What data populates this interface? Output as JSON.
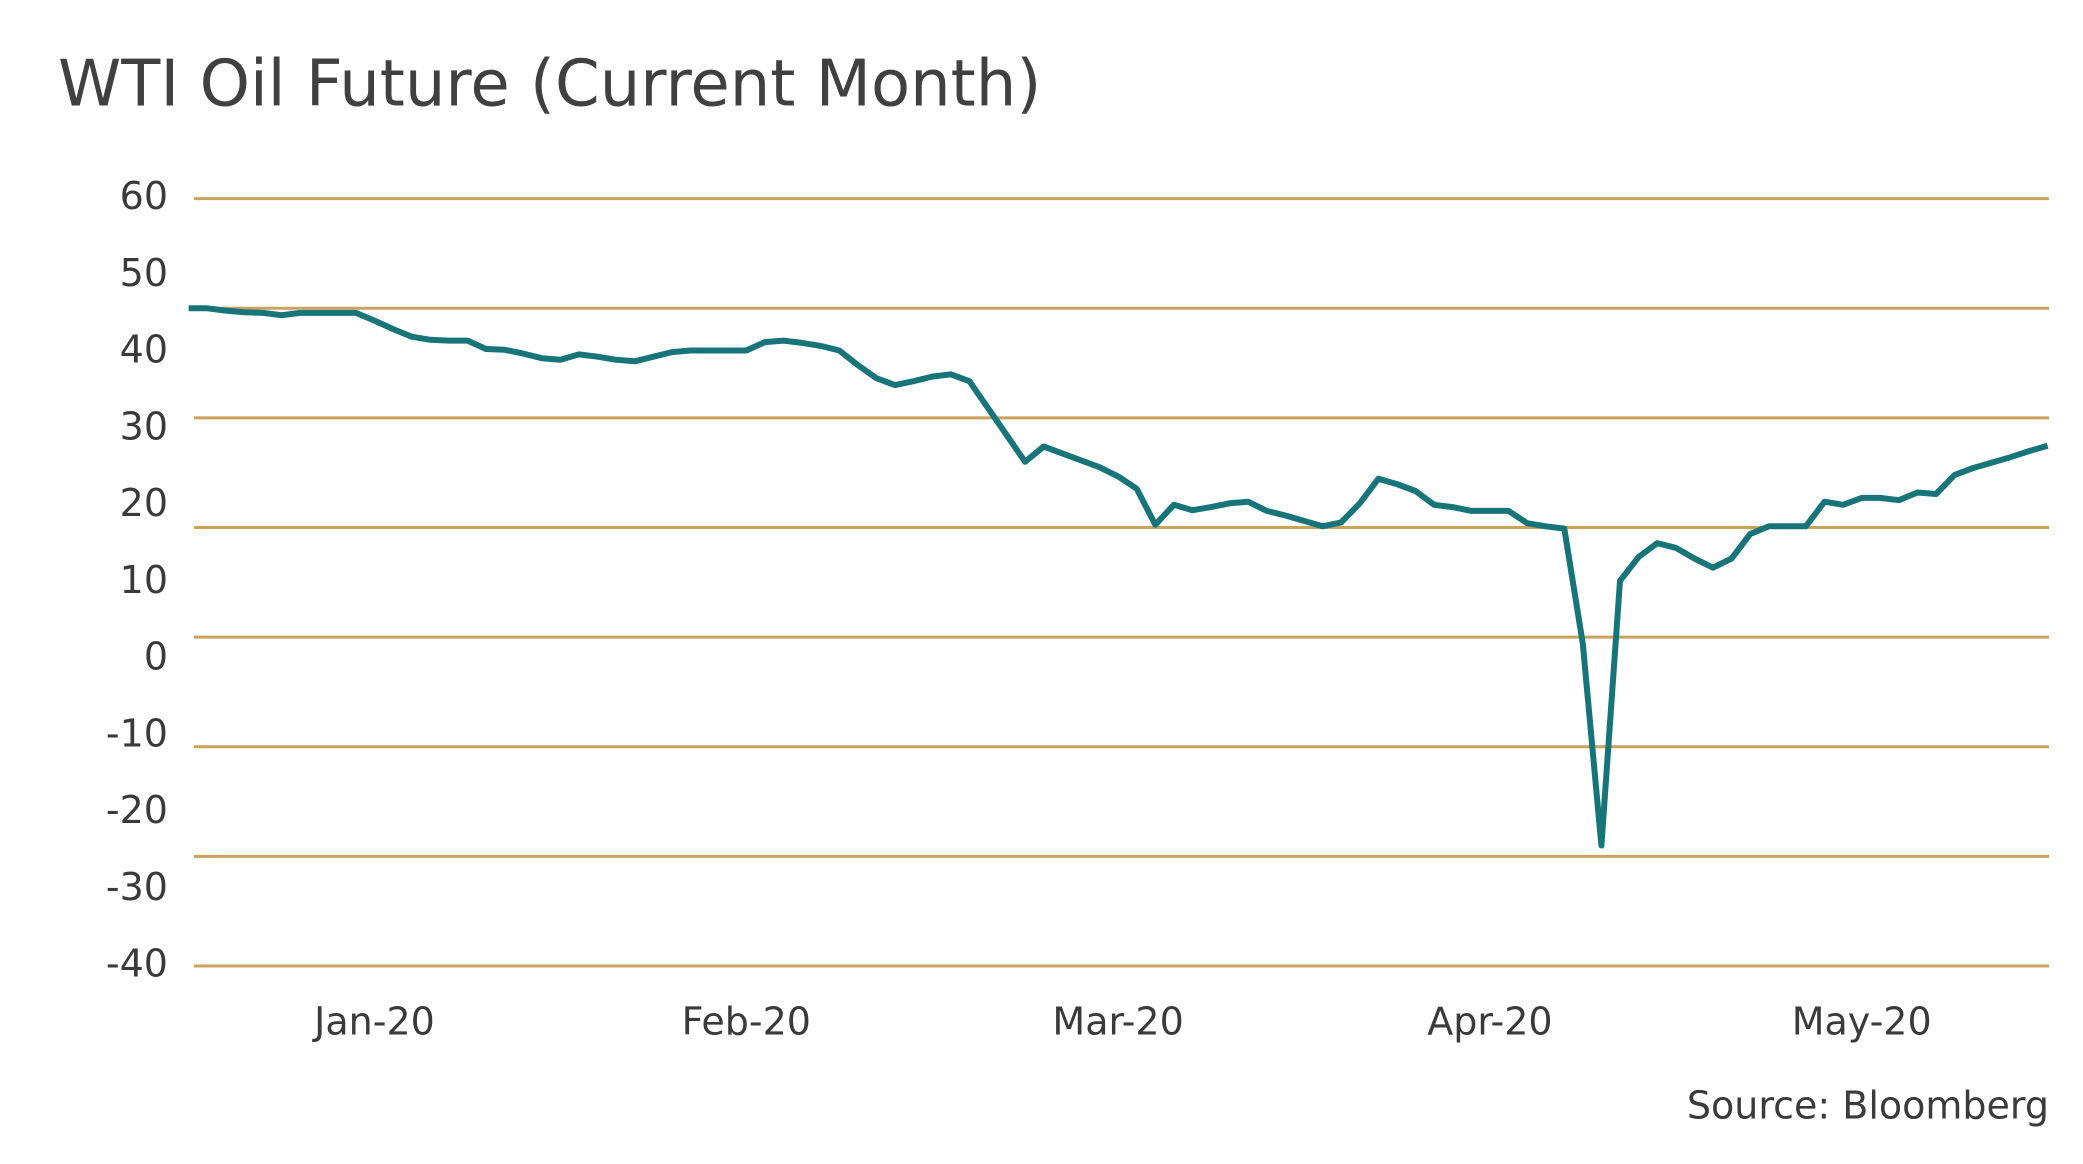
{
  "chart_data": {
    "type": "line",
    "title": "WTI Oil Future (Current Month)",
    "source": "Source: Bloomberg",
    "categories": [
      null,
      null,
      null,
      null,
      null,
      null,
      null,
      null,
      null,
      null,
      "Jan-20",
      null,
      null,
      null,
      null,
      null,
      null,
      null,
      null,
      null,
      null,
      null,
      null,
      null,
      null,
      null,
      null,
      null,
      null,
      null,
      "Feb-20",
      null,
      null,
      null,
      null,
      null,
      null,
      null,
      null,
      null,
      null,
      null,
      null,
      null,
      null,
      null,
      null,
      null,
      null,
      null,
      "Mar-20",
      null,
      null,
      null,
      null,
      null,
      null,
      null,
      null,
      null,
      null,
      null,
      null,
      null,
      null,
      null,
      null,
      null,
      null,
      null,
      "Apr-20",
      null,
      null,
      null,
      null,
      null,
      null,
      null,
      null,
      null,
      null,
      null,
      null,
      null,
      null,
      null,
      null,
      null,
      null,
      null,
      "May-20",
      null,
      null,
      null,
      null,
      null,
      null,
      null,
      null,
      null,
      null
    ],
    "values": [
      45.7,
      45.7,
      45.4,
      45.2,
      45.1,
      44.8,
      45.1,
      45.1,
      45.1,
      45.1,
      44.1,
      43.0,
      42.0,
      41.6,
      41.5,
      41.5,
      40.4,
      40.3,
      39.8,
      39.2,
      39.0,
      39.7,
      39.4,
      39.0,
      38.8,
      39.4,
      40.0,
      40.2,
      40.2,
      40.2,
      40.2,
      41.3,
      41.5,
      41.2,
      40.8,
      40.2,
      38.3,
      36.6,
      35.7,
      36.2,
      36.8,
      37.1,
      36.2,
      32.7,
      29.2,
      25.7,
      27.7,
      26.8,
      25.9,
      25.0,
      23.8,
      22.2,
      17.5,
      20.1,
      19.4,
      19.8,
      20.3,
      20.5,
      19.3,
      18.7,
      18.0,
      17.3,
      17.8,
      20.3,
      23.5,
      22.8,
      21.9,
      20.1,
      19.8,
      19.3,
      19.3,
      19.3,
      17.7,
      17.3,
      17.0,
      2.0,
      -24.3,
      10.2,
      13.3,
      15.1,
      14.5,
      13.1,
      11.9,
      13.1,
      16.3,
      17.3,
      17.3,
      17.3,
      20.5,
      20.1,
      21.0,
      21.0,
      20.7,
      21.7,
      21.5,
      24.0,
      24.9,
      25.6,
      26.3,
      27.1,
      27.8
    ],
    "color": "#17757a",
    "grid_color": "#c9a25b",
    "ylim": [
      -40,
      60
    ],
    "yticks": [
      60,
      50,
      40,
      30,
      20,
      10,
      0,
      -10,
      -20,
      -30,
      -40
    ],
    "grid": true
  }
}
